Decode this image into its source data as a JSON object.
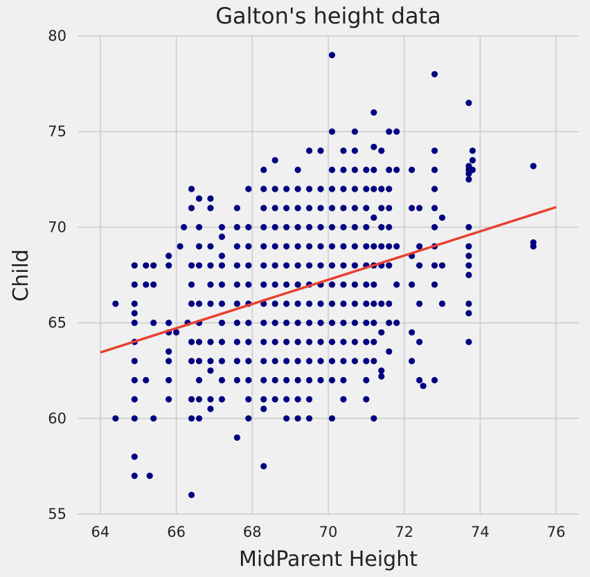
{
  "chart_data": {
    "type": "scatter",
    "title": "Galton's height data",
    "xlabel": "MidParent Height",
    "ylabel": "Child",
    "xlim": [
      63.4,
      76.6
    ],
    "ylim": [
      55,
      80
    ],
    "x_ticks": [
      64,
      66,
      68,
      70,
      72,
      74,
      76
    ],
    "y_ticks": [
      55,
      60,
      65,
      70,
      75,
      80
    ],
    "grid": true,
    "background": "#f0f0f0",
    "point_color": "#000080",
    "line_color": "#e8402f",
    "regression_line": {
      "x": [
        64,
        76
      ],
      "y": [
        63.45,
        71.05
      ]
    },
    "points": [
      [
        64.4,
        66
      ],
      [
        64.4,
        60
      ],
      [
        64.9,
        68
      ],
      [
        64.9,
        67
      ],
      [
        64.9,
        66
      ],
      [
        64.9,
        65.5
      ],
      [
        64.9,
        65
      ],
      [
        64.9,
        64
      ],
      [
        64.9,
        63
      ],
      [
        64.9,
        62
      ],
      [
        64.9,
        61
      ],
      [
        64.9,
        60
      ],
      [
        64.9,
        58
      ],
      [
        64.9,
        57
      ],
      [
        65.2,
        68
      ],
      [
        65.2,
        67
      ],
      [
        65.2,
        62
      ],
      [
        65.3,
        57
      ],
      [
        65.4,
        68
      ],
      [
        65.4,
        67
      ],
      [
        65.4,
        65
      ],
      [
        65.4,
        60
      ],
      [
        65.8,
        68.5
      ],
      [
        65.8,
        68
      ],
      [
        65.8,
        65
      ],
      [
        65.8,
        64.5
      ],
      [
        65.8,
        63.5
      ],
      [
        65.8,
        63
      ],
      [
        65.8,
        62
      ],
      [
        65.8,
        61
      ],
      [
        66.0,
        64.5
      ],
      [
        66.1,
        69
      ],
      [
        66.2,
        70
      ],
      [
        66.3,
        65
      ],
      [
        66.4,
        72
      ],
      [
        66.4,
        71
      ],
      [
        66.4,
        68
      ],
      [
        66.4,
        67
      ],
      [
        66.4,
        66
      ],
      [
        66.4,
        64
      ],
      [
        66.4,
        63
      ],
      [
        66.4,
        61
      ],
      [
        66.4,
        60
      ],
      [
        66.4,
        56
      ],
      [
        66.6,
        71.5
      ],
      [
        66.6,
        70
      ],
      [
        66.6,
        69
      ],
      [
        66.6,
        68
      ],
      [
        66.6,
        66
      ],
      [
        66.6,
        65
      ],
      [
        66.6,
        64
      ],
      [
        66.6,
        63
      ],
      [
        66.6,
        62
      ],
      [
        66.6,
        61
      ],
      [
        66.6,
        60
      ],
      [
        66.9,
        71.5
      ],
      [
        66.9,
        71
      ],
      [
        66.9,
        69
      ],
      [
        66.9,
        68
      ],
      [
        66.9,
        67
      ],
      [
        66.9,
        66
      ],
      [
        66.9,
        64
      ],
      [
        66.9,
        63
      ],
      [
        66.9,
        62.5
      ],
      [
        66.9,
        61
      ],
      [
        66.9,
        60.5
      ],
      [
        67.2,
        70
      ],
      [
        67.2,
        69.5
      ],
      [
        67.2,
        68.5
      ],
      [
        67.2,
        68
      ],
      [
        67.2,
        67
      ],
      [
        67.2,
        66
      ],
      [
        67.2,
        65
      ],
      [
        67.2,
        64
      ],
      [
        67.2,
        63
      ],
      [
        67.2,
        62
      ],
      [
        67.2,
        61
      ],
      [
        67.6,
        71
      ],
      [
        67.6,
        70
      ],
      [
        67.6,
        69
      ],
      [
        67.6,
        68
      ],
      [
        67.6,
        67
      ],
      [
        67.6,
        66
      ],
      [
        67.6,
        65
      ],
      [
        67.6,
        64
      ],
      [
        67.6,
        63
      ],
      [
        67.6,
        62
      ],
      [
        67.6,
        59
      ],
      [
        67.9,
        72
      ],
      [
        67.9,
        70
      ],
      [
        67.9,
        69
      ],
      [
        67.9,
        68
      ],
      [
        67.9,
        67
      ],
      [
        67.9,
        66
      ],
      [
        67.9,
        65
      ],
      [
        67.9,
        64
      ],
      [
        67.9,
        63
      ],
      [
        67.9,
        62
      ],
      [
        67.9,
        61
      ],
      [
        67.9,
        60
      ],
      [
        68.3,
        73
      ],
      [
        68.3,
        72
      ],
      [
        68.3,
        71
      ],
      [
        68.3,
        70
      ],
      [
        68.3,
        69
      ],
      [
        68.3,
        68
      ],
      [
        68.3,
        67
      ],
      [
        68.3,
        66
      ],
      [
        68.3,
        65
      ],
      [
        68.3,
        64
      ],
      [
        68.3,
        63
      ],
      [
        68.3,
        62
      ],
      [
        68.3,
        61
      ],
      [
        68.3,
        60.5
      ],
      [
        68.3,
        57.5
      ],
      [
        68.6,
        73.5
      ],
      [
        68.6,
        72
      ],
      [
        68.6,
        71
      ],
      [
        68.6,
        70
      ],
      [
        68.6,
        69
      ],
      [
        68.6,
        68
      ],
      [
        68.6,
        67
      ],
      [
        68.6,
        66
      ],
      [
        68.6,
        65
      ],
      [
        68.6,
        64
      ],
      [
        68.6,
        63
      ],
      [
        68.6,
        62
      ],
      [
        68.6,
        61
      ],
      [
        68.9,
        72
      ],
      [
        68.9,
        71
      ],
      [
        68.9,
        70
      ],
      [
        68.9,
        69
      ],
      [
        68.9,
        68
      ],
      [
        68.9,
        67
      ],
      [
        68.9,
        66
      ],
      [
        68.9,
        65
      ],
      [
        68.9,
        64
      ],
      [
        68.9,
        63
      ],
      [
        68.9,
        62
      ],
      [
        68.9,
        61
      ],
      [
        68.9,
        60
      ],
      [
        69.2,
        73
      ],
      [
        69.2,
        72
      ],
      [
        69.2,
        71
      ],
      [
        69.2,
        70
      ],
      [
        69.2,
        69
      ],
      [
        69.2,
        68
      ],
      [
        69.2,
        67
      ],
      [
        69.2,
        66
      ],
      [
        69.2,
        65
      ],
      [
        69.2,
        64
      ],
      [
        69.2,
        63
      ],
      [
        69.2,
        62
      ],
      [
        69.2,
        61
      ],
      [
        69.2,
        60
      ],
      [
        69.5,
        74
      ],
      [
        69.5,
        72
      ],
      [
        69.5,
        71
      ],
      [
        69.5,
        70
      ],
      [
        69.5,
        69
      ],
      [
        69.5,
        68
      ],
      [
        69.5,
        67
      ],
      [
        69.5,
        66
      ],
      [
        69.5,
        65
      ],
      [
        69.5,
        64
      ],
      [
        69.5,
        63
      ],
      [
        69.5,
        62
      ],
      [
        69.5,
        61
      ],
      [
        69.5,
        60
      ],
      [
        69.8,
        74
      ],
      [
        69.8,
        72
      ],
      [
        69.8,
        71
      ],
      [
        69.8,
        70
      ],
      [
        69.8,
        69
      ],
      [
        69.8,
        68
      ],
      [
        69.8,
        67
      ],
      [
        69.8,
        66
      ],
      [
        69.8,
        65
      ],
      [
        69.8,
        64
      ],
      [
        69.8,
        63
      ],
      [
        69.8,
        62
      ],
      [
        70.1,
        79
      ],
      [
        70.1,
        75
      ],
      [
        70.1,
        73
      ],
      [
        70.1,
        72
      ],
      [
        70.1,
        71
      ],
      [
        70.1,
        70
      ],
      [
        70.1,
        69
      ],
      [
        70.1,
        68
      ],
      [
        70.1,
        67
      ],
      [
        70.1,
        66
      ],
      [
        70.1,
        65
      ],
      [
        70.1,
        64
      ],
      [
        70.1,
        63
      ],
      [
        70.1,
        62
      ],
      [
        70.1,
        60
      ],
      [
        70.4,
        74
      ],
      [
        70.4,
        73
      ],
      [
        70.4,
        72
      ],
      [
        70.4,
        71
      ],
      [
        70.4,
        70
      ],
      [
        70.4,
        69
      ],
      [
        70.4,
        68
      ],
      [
        70.4,
        67
      ],
      [
        70.4,
        66
      ],
      [
        70.4,
        65
      ],
      [
        70.4,
        64
      ],
      [
        70.4,
        63
      ],
      [
        70.4,
        62
      ],
      [
        70.4,
        61
      ],
      [
        70.7,
        75
      ],
      [
        70.7,
        74
      ],
      [
        70.7,
        73
      ],
      [
        70.7,
        72
      ],
      [
        70.7,
        71
      ],
      [
        70.7,
        70
      ],
      [
        70.7,
        69
      ],
      [
        70.7,
        68
      ],
      [
        70.7,
        67
      ],
      [
        70.7,
        66
      ],
      [
        70.7,
        65
      ],
      [
        70.7,
        64
      ],
      [
        70.7,
        63
      ],
      [
        71.0,
        73
      ],
      [
        71.0,
        72
      ],
      [
        71.0,
        71
      ],
      [
        71.0,
        70
      ],
      [
        71.0,
        69
      ],
      [
        71.0,
        68
      ],
      [
        71.0,
        67
      ],
      [
        71.0,
        66
      ],
      [
        71.0,
        65
      ],
      [
        71.0,
        64
      ],
      [
        71.0,
        63
      ],
      [
        71.0,
        62
      ],
      [
        71.0,
        61
      ],
      [
        71.2,
        76
      ],
      [
        71.2,
        74.2
      ],
      [
        71.2,
        73
      ],
      [
        71.2,
        72
      ],
      [
        71.2,
        70.5
      ],
      [
        71.2,
        69
      ],
      [
        71.2,
        68
      ],
      [
        71.2,
        67
      ],
      [
        71.2,
        66
      ],
      [
        71.2,
        65
      ],
      [
        71.2,
        64
      ],
      [
        71.2,
        63
      ],
      [
        71.2,
        60
      ],
      [
        71.4,
        74
      ],
      [
        71.4,
        72
      ],
      [
        71.4,
        71
      ],
      [
        71.4,
        70
      ],
      [
        71.4,
        69
      ],
      [
        71.4,
        68
      ],
      [
        71.4,
        66
      ],
      [
        71.4,
        64.5
      ],
      [
        71.4,
        62.5
      ],
      [
        71.4,
        62.2
      ],
      [
        71.6,
        75
      ],
      [
        71.6,
        73
      ],
      [
        71.6,
        72
      ],
      [
        71.6,
        71
      ],
      [
        71.6,
        70
      ],
      [
        71.6,
        69
      ],
      [
        71.6,
        68
      ],
      [
        71.6,
        66
      ],
      [
        71.6,
        65
      ],
      [
        71.6,
        63.5
      ],
      [
        71.8,
        75
      ],
      [
        71.8,
        73
      ],
      [
        71.8,
        69
      ],
      [
        71.8,
        67
      ],
      [
        71.8,
        65
      ],
      [
        72.2,
        73
      ],
      [
        72.2,
        71
      ],
      [
        72.2,
        68.5
      ],
      [
        72.2,
        67
      ],
      [
        72.2,
        64.5
      ],
      [
        72.2,
        63
      ],
      [
        72.4,
        71
      ],
      [
        72.4,
        69
      ],
      [
        72.4,
        68
      ],
      [
        72.4,
        66
      ],
      [
        72.4,
        64
      ],
      [
        72.4,
        62
      ],
      [
        72.5,
        61.7
      ],
      [
        72.8,
        78
      ],
      [
        72.8,
        74
      ],
      [
        72.8,
        73
      ],
      [
        72.8,
        72
      ],
      [
        72.8,
        71
      ],
      [
        72.8,
        70
      ],
      [
        72.8,
        69
      ],
      [
        72.8,
        68
      ],
      [
        72.8,
        67
      ],
      [
        72.8,
        62
      ],
      [
        73.0,
        70.5
      ],
      [
        73.0,
        68
      ],
      [
        73.0,
        66
      ],
      [
        73.7,
        73.2
      ],
      [
        73.7,
        73
      ],
      [
        73.7,
        72.8
      ],
      [
        73.7,
        72.5
      ],
      [
        73.7,
        70
      ],
      [
        73.7,
        69
      ],
      [
        73.7,
        68.5
      ],
      [
        73.7,
        68
      ],
      [
        73.7,
        67.5
      ],
      [
        73.7,
        66
      ],
      [
        73.7,
        65.5
      ],
      [
        73.7,
        64
      ],
      [
        73.7,
        76.5
      ],
      [
        73.8,
        74
      ],
      [
        73.8,
        73.5
      ],
      [
        73.8,
        73
      ],
      [
        75.4,
        73.2
      ],
      [
        75.4,
        69.2
      ],
      [
        75.4,
        69
      ]
    ]
  }
}
